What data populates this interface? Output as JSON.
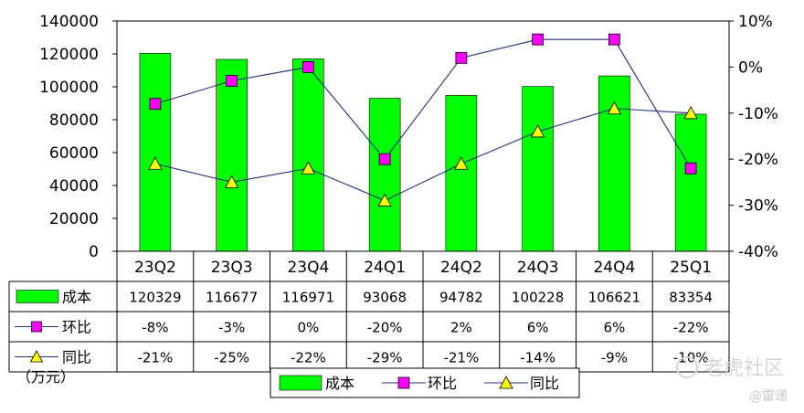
{
  "chart_data": {
    "type": "bar",
    "categories": [
      "23Q2",
      "23Q3",
      "23Q4",
      "24Q1",
      "24Q2",
      "24Q3",
      "24Q4",
      "25Q1"
    ],
    "series": [
      {
        "name": "成本",
        "kind": "bar",
        "axis": "left",
        "values": [
          120329,
          116677,
          116971,
          93068,
          94782,
          100228,
          106621,
          83354
        ],
        "labels": [
          "120329",
          "116677",
          "116971",
          "93068",
          "94782",
          "100228",
          "106621",
          "83354"
        ],
        "color": "#00ff00"
      },
      {
        "name": "环比",
        "kind": "line",
        "axis": "right",
        "marker": "square",
        "values": [
          -8,
          -3,
          0,
          -20,
          2,
          6,
          6,
          -22
        ],
        "labels": [
          "-8%",
          "-3%",
          "0%",
          "-20%",
          "2%",
          "6%",
          "6%",
          "-22%"
        ],
        "color": "#ff00ff"
      },
      {
        "name": "同比",
        "kind": "line",
        "axis": "right",
        "marker": "triangle",
        "values": [
          -21,
          -25,
          -22,
          -29,
          -21,
          -14,
          -9,
          -10
        ],
        "labels": [
          "-21%",
          "-25%",
          "-22%",
          "-29%",
          "-21%",
          "-14%",
          "-9%",
          "-10%"
        ],
        "color": "#ffff00"
      }
    ],
    "y_left": {
      "ylim": [
        0,
        140000
      ],
      "ticks": [
        "0",
        "20000",
        "40000",
        "60000",
        "80000",
        "100000",
        "120000",
        "140000"
      ]
    },
    "y_right": {
      "ylim": [
        -40,
        10
      ],
      "ticks": [
        "-40%",
        "-30%",
        "-20%",
        "-10%",
        "0%",
        "10%"
      ]
    },
    "unit_label": "（万元）",
    "legend_position": "bottom-center",
    "data_table": true
  },
  "watermark": {
    "brand": "老虎社区",
    "author": "@雷递"
  }
}
